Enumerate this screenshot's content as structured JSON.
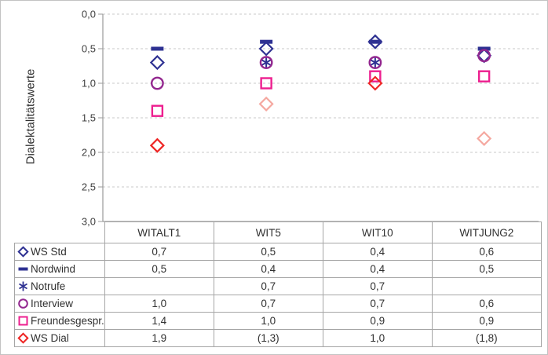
{
  "y_axis": {
    "label": "Dialektalitätswerte",
    "tick_labels": [
      "0,0",
      "0,5",
      "1,0",
      "1,5",
      "2,0",
      "2,5",
      "3,0"
    ]
  },
  "colors": {
    "navy": "#2E3192",
    "purple": "#93278F",
    "pink": "#ED1F8F",
    "red": "#EE2524",
    "salmon": "#F5A8A0",
    "grid": "#C8C8C8",
    "axis": "#9A9A9A",
    "table_border": "#A6A6A6",
    "text": "#303030"
  },
  "chart_data": {
    "type": "scatter",
    "title": "",
    "xlabel": "",
    "ylabel": "Dialektalitätswerte",
    "ylim": [
      0.0,
      3.0
    ],
    "y_inverted": true,
    "y_tick_step": 0.5,
    "grid": "dashed-horizontal",
    "legend_position": "table-rows-left",
    "categories": [
      "WITALT1",
      "WIT5",
      "WIT10",
      "WITJUNG2"
    ],
    "series": [
      {
        "name": "WS Std",
        "marker": "diamond",
        "color": "#2E3192",
        "values": [
          0.7,
          0.5,
          0.4,
          0.6
        ],
        "display": [
          "0,7",
          "0,5",
          "0,4",
          "0,6"
        ],
        "muted": [
          false,
          false,
          false,
          false
        ]
      },
      {
        "name": "Nordwind",
        "marker": "dash",
        "color": "#2E3192",
        "values": [
          0.5,
          0.4,
          0.4,
          0.5
        ],
        "display": [
          "0,5",
          "0,4",
          "0,4",
          "0,5"
        ],
        "muted": [
          false,
          false,
          false,
          false
        ]
      },
      {
        "name": "Notrufe",
        "marker": "asterisk",
        "color": "#2E3192",
        "values": [
          null,
          0.7,
          0.7,
          null
        ],
        "display": [
          "",
          "0,7",
          "0,7",
          ""
        ],
        "muted": [
          false,
          false,
          false,
          false
        ]
      },
      {
        "name": "Interview",
        "marker": "circle",
        "color": "#93278F",
        "values": [
          1.0,
          0.7,
          0.7,
          0.6
        ],
        "display": [
          "1,0",
          "0,7",
          "0,7",
          "0,6"
        ],
        "muted": [
          false,
          false,
          false,
          false
        ]
      },
      {
        "name": "Freundesgespr.",
        "marker": "square",
        "color": "#ED1F8F",
        "values": [
          1.4,
          1.0,
          0.9,
          0.9
        ],
        "display": [
          "1,4",
          "1,0",
          "0,9",
          "0,9"
        ],
        "muted": [
          false,
          false,
          false,
          false
        ]
      },
      {
        "name": "WS Dial",
        "marker": "diamond",
        "color": "#EE2524",
        "muted_color": "#F5A8A0",
        "values": [
          1.9,
          1.3,
          1.0,
          1.8
        ],
        "display": [
          "1,9",
          "(1,3)",
          "1,0",
          "(1,8)"
        ],
        "muted": [
          false,
          true,
          false,
          true
        ]
      }
    ]
  }
}
